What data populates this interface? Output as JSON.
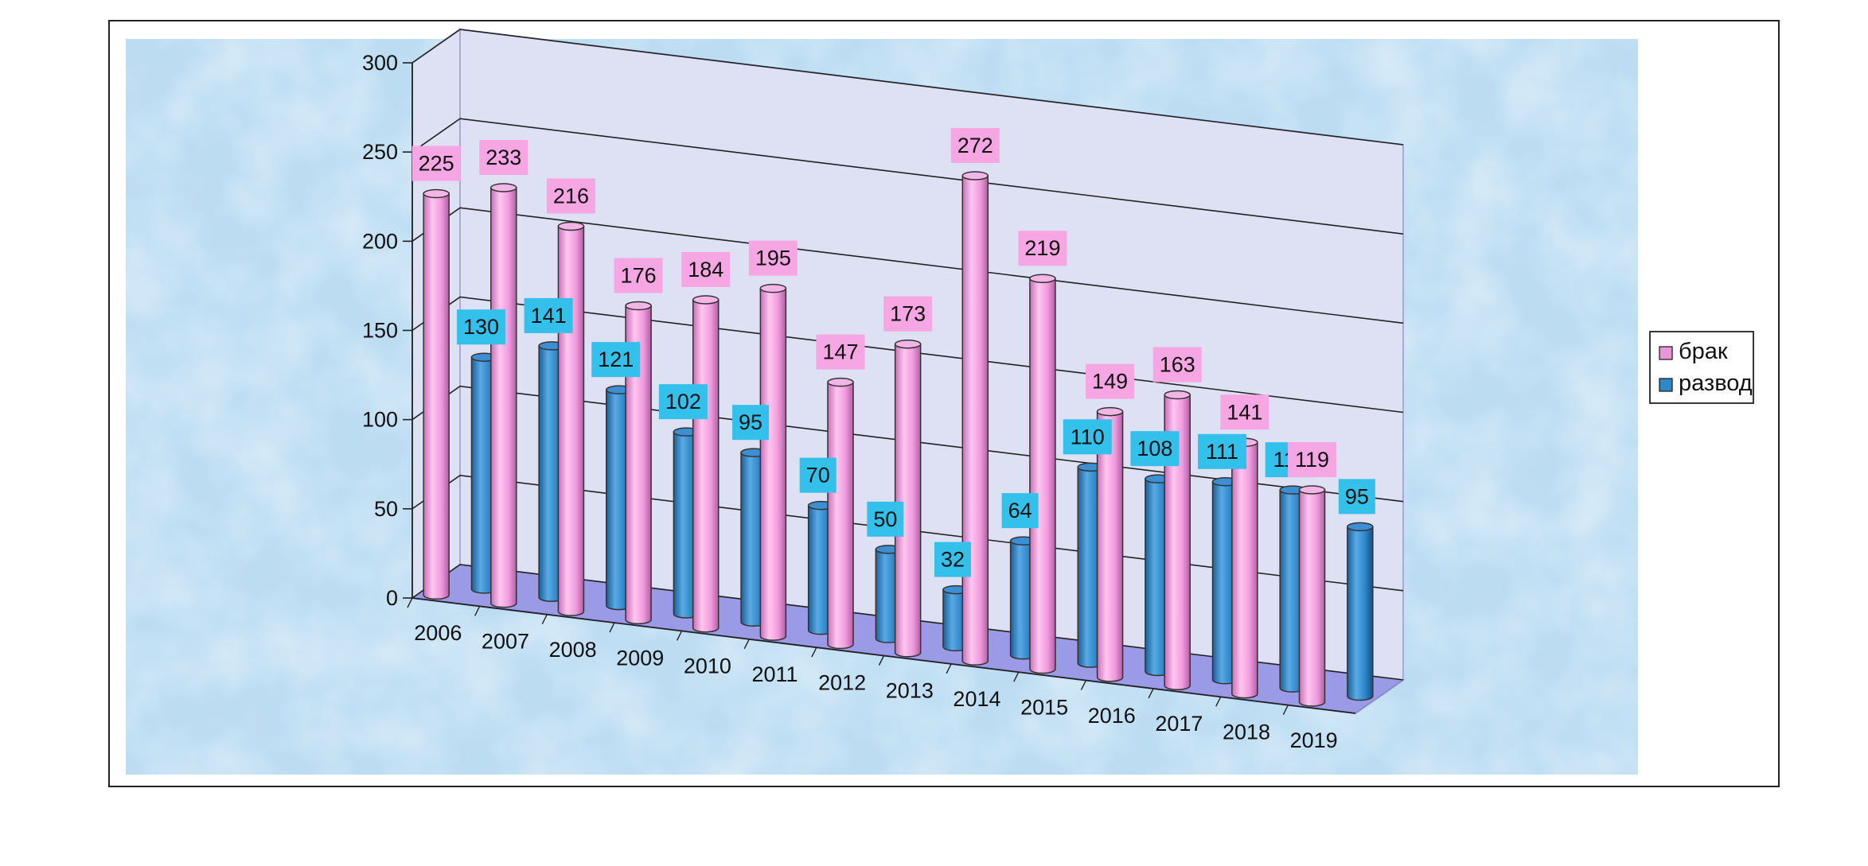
{
  "chart_data": {
    "type": "bar",
    "title": "",
    "xlabel": "",
    "ylabel": "",
    "ylim": [
      0,
      300
    ],
    "yticks": [
      0,
      50,
      100,
      150,
      200,
      250,
      300
    ],
    "categories": [
      "2006",
      "2007",
      "2008",
      "2009",
      "2010",
      "2011",
      "2012",
      "2013",
      "2014",
      "2015",
      "2016",
      "2017",
      "2018",
      "2019"
    ],
    "series": [
      {
        "name": "брак",
        "color": "#ec94d8",
        "label_bg": "#f6a6e2",
        "values": [
          225,
          233,
          216,
          176,
          184,
          195,
          147,
          173,
          272,
          219,
          149,
          163,
          141,
          119
        ]
      },
      {
        "name": "развод",
        "color": "#2f86c8",
        "label_bg": "#33c0ea",
        "values": [
          130,
          141,
          121,
          102,
          95,
          70,
          50,
          32,
          64,
          110,
          108,
          111,
          111,
          95
        ]
      }
    ],
    "legend_position": "right",
    "grid": true,
    "style": "3d-cylinder",
    "background": "#bcdcf2",
    "wall_color": "#dde1f3",
    "floor_color": "#9a9ae6"
  }
}
